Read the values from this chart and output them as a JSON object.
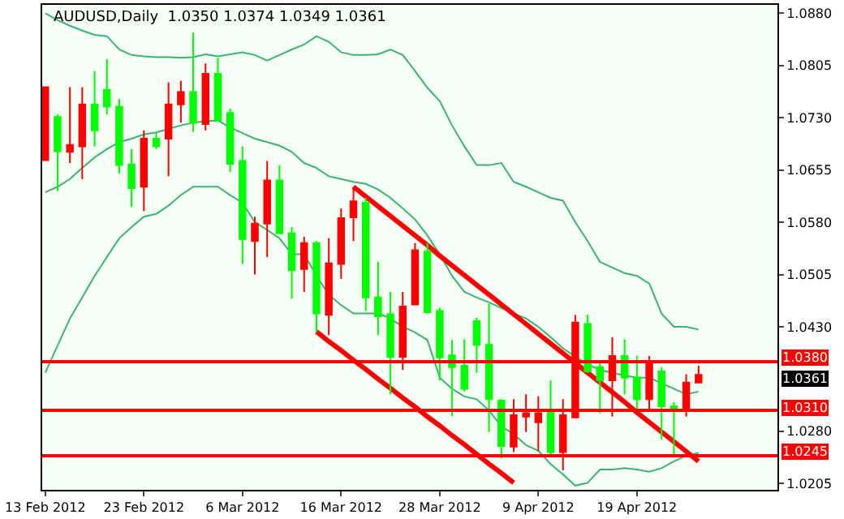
{
  "chart_data": {
    "type": "candlestick",
    "title": "AUDUSD,Daily  1.0350 1.0374 1.0349 1.0361",
    "categories": [
      "13 Feb 2012",
      null,
      null,
      null,
      null,
      null,
      null,
      null,
      "23 Feb 2012",
      null,
      null,
      null,
      null,
      null,
      null,
      null,
      "6 Mar 2012",
      null,
      null,
      null,
      null,
      null,
      null,
      null,
      "16 Mar 2012",
      null,
      null,
      null,
      null,
      null,
      null,
      null,
      "28 Mar 2012",
      null,
      null,
      null,
      null,
      null,
      null,
      null,
      "9 Apr 2012",
      null,
      null,
      null,
      null,
      null,
      null,
      null,
      "19 Apr 2012",
      null,
      null,
      null,
      null,
      null
    ],
    "ohlc": [
      [
        1.0669,
        1.0774,
        1.0669,
        1.0774
      ],
      [
        1.0731,
        1.0735,
        1.0625,
        1.0682
      ],
      [
        1.0681,
        1.0774,
        1.0665,
        1.0691
      ],
      [
        1.0689,
        1.0774,
        1.0642,
        1.0749
      ],
      [
        1.0749,
        1.0797,
        1.0689,
        1.0712
      ],
      [
        1.077,
        1.0814,
        1.0735,
        1.0746
      ],
      [
        1.0746,
        1.0757,
        1.065,
        1.0662
      ],
      [
        1.0663,
        1.0685,
        1.0602,
        1.0629
      ],
      [
        1.0631,
        1.0712,
        1.0596,
        1.07
      ],
      [
        1.07,
        1.0708,
        1.0685,
        1.0689
      ],
      [
        1.07,
        1.0781,
        1.0646,
        1.0749
      ],
      [
        1.0749,
        1.0783,
        1.0723,
        1.0767
      ],
      [
        1.0767,
        1.0852,
        1.071,
        1.0723
      ],
      [
        1.0721,
        1.0808,
        1.0712,
        1.0793
      ],
      [
        1.0793,
        1.0816,
        1.0726,
        1.0726
      ],
      [
        1.0737,
        1.0743,
        1.0652,
        1.0664
      ],
      [
        1.0668,
        1.0689,
        1.052,
        1.0556
      ],
      [
        1.0553,
        1.0588,
        1.0505,
        1.0578
      ],
      [
        1.0578,
        1.0668,
        1.053,
        1.064
      ],
      [
        1.064,
        1.0662,
        1.0564,
        1.0564
      ],
      [
        1.0564,
        1.0573,
        1.047,
        1.0511
      ],
      [
        1.0513,
        1.0559,
        1.048,
        1.055
      ],
      [
        1.055,
        1.0553,
        1.0422,
        1.0449
      ],
      [
        1.0447,
        1.0557,
        1.0418,
        1.0521
      ],
      [
        1.052,
        1.06,
        1.0499,
        1.0586
      ],
      [
        1.0587,
        1.0631,
        1.0553,
        1.061
      ],
      [
        1.0608,
        1.0615,
        1.0453,
        1.0472
      ],
      [
        1.0472,
        1.0523,
        1.0418,
        1.0445
      ],
      [
        1.0448,
        1.048,
        1.0333,
        1.0387
      ],
      [
        1.0387,
        1.048,
        1.0368,
        1.0459
      ],
      [
        1.0462,
        1.055,
        1.0461,
        1.054
      ],
      [
        1.0538,
        1.055,
        1.0449,
        1.0451
      ],
      [
        1.0453,
        1.0457,
        1.0353,
        1.0386
      ],
      [
        1.0389,
        1.0411,
        1.0302,
        1.0372
      ],
      [
        1.0374,
        1.0412,
        1.0337,
        1.0341
      ],
      [
        1.0438,
        1.0443,
        1.0364,
        1.0404
      ],
      [
        1.0404,
        1.0463,
        1.0279,
        1.0326
      ],
      [
        1.0324,
        1.0326,
        1.0241,
        1.0259
      ],
      [
        1.0258,
        1.0326,
        1.025,
        1.0303
      ],
      [
        1.0301,
        1.0333,
        1.0279,
        1.0306
      ],
      [
        1.0293,
        1.033,
        1.0252,
        1.0306
      ],
      [
        1.031,
        1.0353,
        1.0245,
        1.025
      ],
      [
        1.025,
        1.0326,
        1.0224,
        1.0303
      ],
      [
        1.03,
        1.0447,
        1.0299,
        1.0436
      ],
      [
        1.0434,
        1.0447,
        1.0364,
        1.0366
      ],
      [
        1.0372,
        1.038,
        1.0306,
        1.0353
      ],
      [
        1.0353,
        1.0415,
        1.0301,
        1.0388
      ],
      [
        1.0388,
        1.0412,
        1.0333,
        1.0357
      ],
      [
        1.0357,
        1.0388,
        1.031,
        1.0326
      ],
      [
        1.0326,
        1.0388,
        1.031,
        1.0377
      ],
      [
        1.0366,
        1.0372,
        1.0268,
        1.0316
      ],
      [
        1.0316,
        1.0322,
        1.0245,
        1.031
      ],
      [
        1.031,
        1.0362,
        1.0301,
        1.035
      ],
      [
        1.035,
        1.0374,
        1.0349,
        1.0361
      ]
    ],
    "colors": [
      "#ff0000",
      "#00ff00",
      "#ff0000",
      "#ff0000",
      "#00ff00",
      "#00ff00",
      "#00ff00",
      "#00ff00",
      "#ff0000",
      "#00ff00",
      "#ff0000",
      "#ff0000",
      "#00ff00",
      "#ff0000",
      "#00ff00",
      "#00ff00",
      "#00ff00",
      "#ff0000",
      "#ff0000",
      "#00ff00",
      "#00ff00",
      "#ff0000",
      "#00ff00",
      "#ff0000",
      "#ff0000",
      "#ff0000",
      "#00ff00",
      "#00ff00",
      "#00ff00",
      "#ff0000",
      "#ff0000",
      "#00ff00",
      "#00ff00",
      "#00ff00",
      "#00ff00",
      "#00ff00",
      "#00ff00",
      "#00ff00",
      "#ff0000",
      "#ff0000",
      "#ff0000",
      "#00ff00",
      "#ff0000",
      "#ff0000",
      "#00ff00",
      "#00ff00",
      "#ff0000",
      "#00ff00",
      "#00ff00",
      "#ff0000",
      "#00ff00",
      "#00ff00",
      "#ff0000",
      "#ff0000"
    ],
    "series": [
      {
        "type": "line",
        "color": "#3cb371",
        "values": [
          1.088,
          1.087,
          1.0862,
          1.0855,
          1.0849,
          1.0847,
          1.0828,
          1.082,
          1.0818,
          1.0817,
          1.0817,
          1.0816,
          1.0817,
          1.0821,
          1.0818,
          1.0821,
          1.0824,
          1.082,
          1.0812,
          1.082,
          1.0828,
          1.0835,
          1.0847,
          1.0839,
          1.0824,
          1.082,
          1.082,
          1.0821,
          1.0828,
          1.082,
          1.0797,
          1.0773,
          1.0754,
          1.0719,
          1.0689,
          1.0662,
          1.0662,
          1.0665,
          1.0638,
          1.0631,
          1.0623,
          1.0615,
          1.0611,
          1.058,
          1.0553,
          1.0523,
          1.0515,
          1.0507,
          1.0503,
          1.0492,
          1.0449,
          1.043,
          1.043,
          1.0426
        ]
      },
      {
        "type": "line",
        "color": "#3cb371",
        "values": [
          1.0623,
          1.0631,
          1.0642,
          1.0658,
          1.0673,
          1.0685,
          1.0695,
          1.07,
          1.0706,
          1.0709,
          1.0714,
          1.0719,
          1.0723,
          1.0725,
          1.0726,
          1.0716,
          1.0708,
          1.07,
          1.0695,
          1.069,
          1.0681,
          1.0665,
          1.0658,
          1.0646,
          1.0642,
          1.0638,
          1.0635,
          1.0627,
          1.0615,
          1.06,
          1.0584,
          1.0561,
          1.0534,
          1.0503,
          1.048,
          1.0472,
          1.0465,
          1.0457,
          1.0449,
          1.0442,
          1.043,
          1.0415,
          1.0399,
          1.0387,
          1.0376,
          1.0368,
          1.0364,
          1.036,
          1.0357,
          1.0357,
          1.0349,
          1.0341,
          1.0333,
          1.0337
        ]
      },
      {
        "type": "line",
        "color": "#3cb371",
        "values": [
          1.0364,
          1.0403,
          1.0442,
          1.0472,
          1.0503,
          1.053,
          1.0557,
          1.0573,
          1.0588,
          1.0592,
          1.0604,
          1.0619,
          1.0631,
          1.0631,
          1.0631,
          1.0619,
          1.0608,
          1.058,
          1.0569,
          1.0557,
          1.0534,
          1.0534,
          1.0503,
          1.0476,
          1.0461,
          1.0449,
          1.0449,
          1.0449,
          1.0442,
          1.043,
          1.0422,
          1.0411,
          1.0357,
          1.0341,
          1.033,
          1.0326,
          1.031,
          1.0287,
          1.0276,
          1.026,
          1.0252,
          1.0233,
          1.0218,
          1.0202,
          1.0206,
          1.0225,
          1.0225,
          1.0227,
          1.0225,
          1.0222,
          1.0227,
          1.0237,
          1.0245,
          1.0249
        ]
      },
      {
        "type": "line",
        "color": "#ff0000",
        "values": [
          null,
          null,
          null,
          null,
          null,
          null,
          null,
          null,
          null,
          null,
          null,
          null,
          null,
          null,
          null,
          null,
          null,
          null,
          null,
          null,
          null,
          null,
          null,
          null,
          null,
          1.0631,
          1.0617,
          1.0603,
          1.0589,
          1.0575,
          1.0561,
          1.0547,
          1.0532,
          1.0518,
          1.0504,
          1.049,
          1.0476,
          1.0462,
          1.0448,
          1.0434,
          1.042,
          1.0406,
          1.0392,
          1.0378,
          1.0364,
          1.035,
          1.0336,
          1.0322,
          1.0307,
          1.0293,
          1.0279,
          1.0265,
          1.0251,
          1.0237
        ]
      },
      {
        "type": "line",
        "color": "#ff0000",
        "values": [
          null,
          null,
          null,
          null,
          null,
          null,
          null,
          null,
          null,
          null,
          null,
          null,
          null,
          null,
          null,
          null,
          null,
          null,
          null,
          null,
          null,
          null,
          1.0423,
          1.0409,
          1.0396,
          1.0382,
          1.0369,
          1.0355,
          1.0342,
          1.0328,
          1.0315,
          1.0301,
          1.0288,
          1.0274,
          1.0261,
          1.0247,
          1.0233,
          1.022,
          1.0206,
          null,
          null,
          null,
          null,
          null,
          null,
          null,
          null,
          null,
          null,
          null,
          null,
          null,
          null,
          null
        ]
      }
    ],
    "ylim": [
      1.0196,
      1.0892
    ],
    "yticks": [
      {
        "value": 1.088,
        "label": "1.0880"
      },
      {
        "value": 1.0805,
        "label": "1.0805"
      },
      {
        "value": 1.073,
        "label": "1.0730"
      },
      {
        "value": 1.0655,
        "label": "1.0655"
      },
      {
        "value": 1.058,
        "label": "1.0580"
      },
      {
        "value": 1.0505,
        "label": "1.0505"
      },
      {
        "value": 1.043,
        "label": "1.0430"
      },
      {
        "value": 1.028,
        "label": "1.0280"
      },
      {
        "value": 1.0205,
        "label": "1.0205"
      }
    ],
    "ref_lines": [
      {
        "axis": "y",
        "value": 1.038,
        "label": "1.0380",
        "color": "#ff0000"
      },
      {
        "axis": "y",
        "value": 1.031,
        "label": "1.0310",
        "color": "#ff0000"
      },
      {
        "axis": "y",
        "value": 1.0245,
        "label": "1.0245",
        "color": "#ff0000"
      }
    ],
    "annotations": [
      "1.0361"
    ],
    "grid": false
  }
}
